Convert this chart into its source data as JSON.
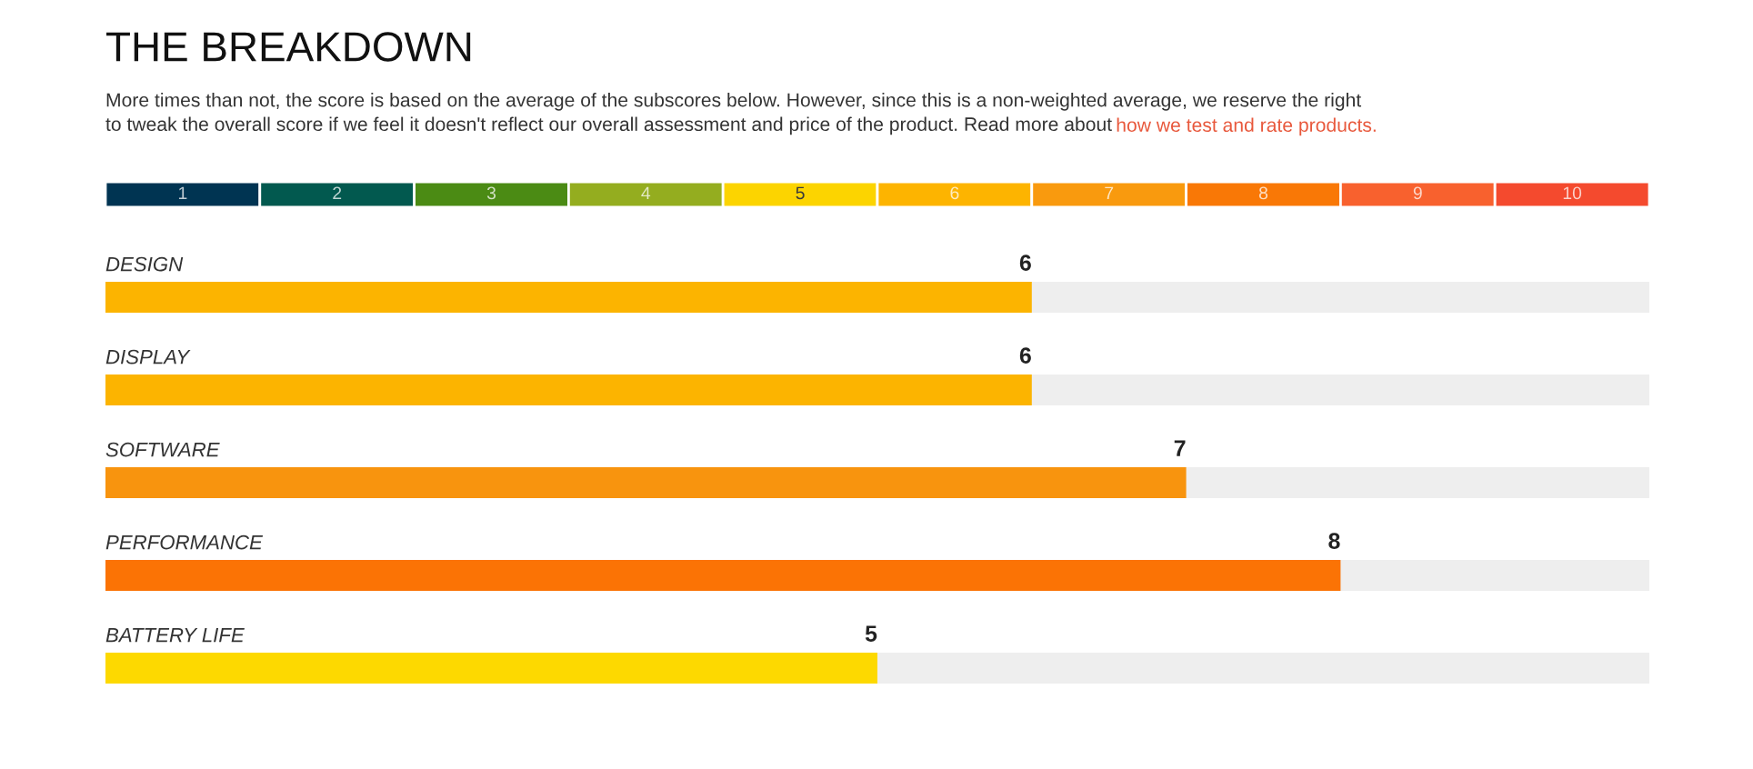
{
  "chart_data": [
    {
      "type": "heatmap",
      "title": "THE BREAKDOWN",
      "subtitle": "More times than not, the score is based on the average of the subscores below. However, since this is a non-weighted average, we reserve the right\nto tweak the overall score if we feel it doesn't reflect our overall assessment and price of the product. Read more about",
      "annotations": [
        "how we test and rate products."
      ],
      "categories": [
        null,
        null,
        null,
        null,
        null,
        null,
        null,
        null,
        null,
        null
      ],
      "y_categories": [
        null
      ],
      "cells": [
        [
          1,
          2,
          3,
          4,
          5,
          6,
          7,
          8,
          9,
          10
        ]
      ],
      "colors": [
        "#003452",
        "#02594f",
        "#4b8b14",
        "#94ad1f",
        "#fcd400",
        "#fdb400",
        "#f99a0e",
        "#f97806",
        "#f8612e",
        "#f44a2e"
      ],
      "data_labels": true
    },
    {
      "type": "bar",
      "orientation": "horizontal",
      "categories": [
        "DESIGN",
        "DISPLAY",
        "SOFTWARE",
        "PERFORMANCE",
        "BATTERY LIFE"
      ],
      "colors": [
        "#fcb400",
        "#fcb400",
        "#f8940e",
        "#fb7305",
        "#fdd900"
      ],
      "values": [
        6,
        6,
        7,
        8,
        5
      ],
      "data_labels": true,
      "xlim": [
        0,
        10
      ],
      "tick_labels": "y"
    }
  ]
}
